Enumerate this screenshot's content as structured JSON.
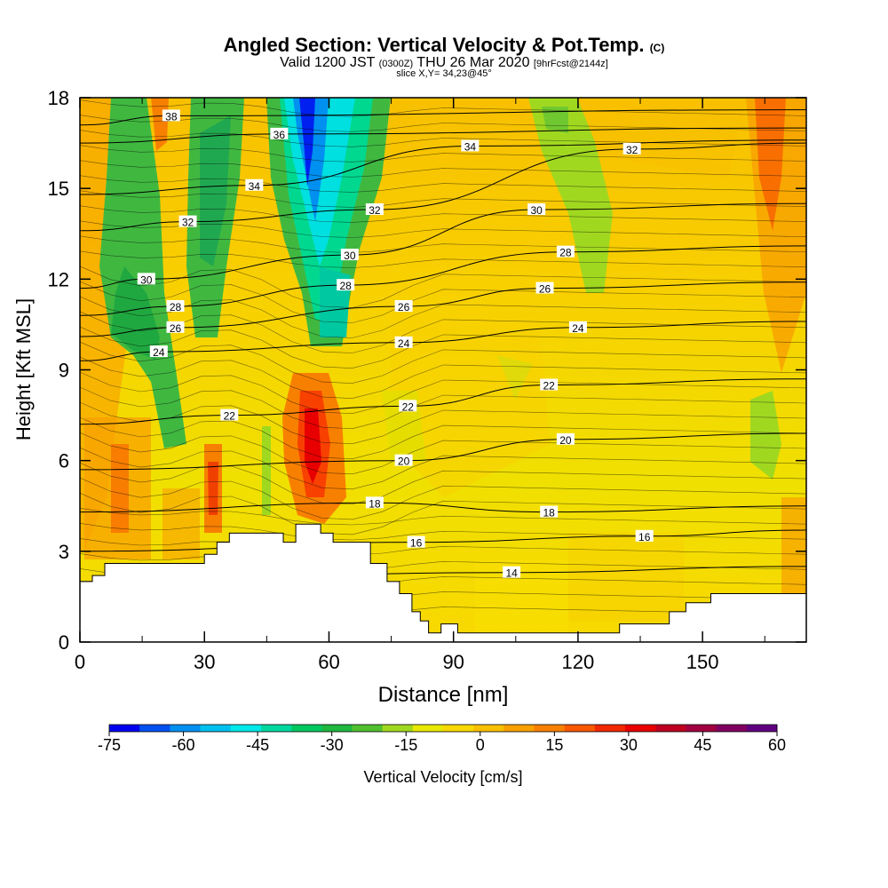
{
  "header": {
    "title_main": "Angled Section: Vertical Velocity & Pot.Temp.",
    "title_tag": "(C)",
    "valid_pre": "Valid 1200 JST",
    "valid_utc": "(0300Z)",
    "valid_post": "THU 26 Mar 2020",
    "valid_fcst": "[9hrFcst@2144z]",
    "slice": "slice X,Y= 34,23@45°"
  },
  "chart_data": {
    "type": "heatmap",
    "xlabel": "Distance [nm]",
    "ylabel": "Height [Kft MSL]",
    "xlim": [
      0,
      175
    ],
    "ylim": [
      0,
      18
    ],
    "x_ticks": [
      0,
      30,
      60,
      90,
      120,
      150
    ],
    "y_ticks": [
      0,
      3,
      6,
      9,
      12,
      15,
      18
    ],
    "colorbar": {
      "label": "Vertical Velocity [cm/s]",
      "range": [
        -75,
        60
      ],
      "ticks": [
        -75,
        -60,
        -45,
        -30,
        -15,
        0,
        15,
        30,
        45,
        60
      ],
      "colors": [
        "#0000f0",
        "#0050f0",
        "#0090f0",
        "#00c0f0",
        "#00e8e8",
        "#00d8a0",
        "#00c860",
        "#20b840",
        "#50c030",
        "#a0d820",
        "#e8e800",
        "#f8d800",
        "#f8c000",
        "#f8a000",
        "#f88000",
        "#f85800",
        "#f02800",
        "#e80000",
        "#c00020",
        "#a00040",
        "#800060",
        "#600080"
      ]
    },
    "contour_variable": "Potential temperature (°C)",
    "contour_labels": [
      {
        "v": 38,
        "x": 22,
        "y": 17.4
      },
      {
        "v": 36,
        "x": 48,
        "y": 16.8
      },
      {
        "v": 34,
        "x": 42,
        "y": 15.1
      },
      {
        "v": 34,
        "x": 94,
        "y": 16.4
      },
      {
        "v": 32,
        "x": 26,
        "y": 13.9
      },
      {
        "v": 32,
        "x": 71,
        "y": 14.3
      },
      {
        "v": 32,
        "x": 133,
        "y": 16.3
      },
      {
        "v": 30,
        "x": 16,
        "y": 12.0
      },
      {
        "v": 30,
        "x": 65,
        "y": 12.8
      },
      {
        "v": 30,
        "x": 110,
        "y": 14.3
      },
      {
        "v": 28,
        "x": 23,
        "y": 11.1
      },
      {
        "v": 28,
        "x": 64,
        "y": 11.8
      },
      {
        "v": 28,
        "x": 117,
        "y": 12.9
      },
      {
        "v": 26,
        "x": 23,
        "y": 10.4
      },
      {
        "v": 26,
        "x": 78,
        "y": 11.1
      },
      {
        "v": 26,
        "x": 112,
        "y": 11.7
      },
      {
        "v": 24,
        "x": 19,
        "y": 9.6
      },
      {
        "v": 24,
        "x": 78,
        "y": 9.9
      },
      {
        "v": 24,
        "x": 120,
        "y": 10.4
      },
      {
        "v": 22,
        "x": 36,
        "y": 7.5
      },
      {
        "v": 22,
        "x": 79,
        "y": 7.8
      },
      {
        "v": 22,
        "x": 113,
        "y": 8.5
      },
      {
        "v": 20,
        "x": 78,
        "y": 6.0
      },
      {
        "v": 20,
        "x": 117,
        "y": 6.7
      },
      {
        "v": 18,
        "x": 71,
        "y": 4.6
      },
      {
        "v": 18,
        "x": 113,
        "y": 4.3
      },
      {
        "v": 16,
        "x": 81,
        "y": 3.3
      },
      {
        "v": 16,
        "x": 136,
        "y": 3.5
      },
      {
        "v": 14,
        "x": 104,
        "y": 2.3
      }
    ],
    "terrain_top_kft": [
      [
        0,
        2.0
      ],
      [
        3,
        2.0
      ],
      [
        3,
        2.2
      ],
      [
        6,
        2.2
      ],
      [
        6,
        2.6
      ],
      [
        30,
        2.6
      ],
      [
        30,
        2.9
      ],
      [
        33,
        2.9
      ],
      [
        33,
        3.3
      ],
      [
        36,
        3.3
      ],
      [
        36,
        3.6
      ],
      [
        49,
        3.6
      ],
      [
        49,
        3.3
      ],
      [
        52,
        3.3
      ],
      [
        52,
        3.9
      ],
      [
        58,
        3.9
      ],
      [
        58,
        3.6
      ],
      [
        61,
        3.6
      ],
      [
        61,
        3.3
      ],
      [
        70,
        3.3
      ],
      [
        70,
        2.6
      ],
      [
        74,
        2.6
      ],
      [
        74,
        2.0
      ],
      [
        77,
        2.0
      ],
      [
        77,
        1.6
      ],
      [
        80,
        1.6
      ],
      [
        80,
        1.0
      ],
      [
        82,
        1.0
      ],
      [
        82,
        0.7
      ],
      [
        84,
        0.7
      ],
      [
        84,
        0.3
      ],
      [
        87,
        0.3
      ],
      [
        87,
        0.6
      ],
      [
        91,
        0.6
      ],
      [
        91,
        0.3
      ],
      [
        130,
        0.3
      ],
      [
        130,
        0.6
      ],
      [
        142,
        0.6
      ],
      [
        142,
        1.0
      ],
      [
        146,
        1.0
      ],
      [
        146,
        1.3
      ],
      [
        152,
        1.3
      ],
      [
        152,
        1.6
      ],
      [
        158,
        1.6
      ],
      [
        158,
        1.6
      ],
      [
        175,
        1.6
      ]
    ]
  }
}
